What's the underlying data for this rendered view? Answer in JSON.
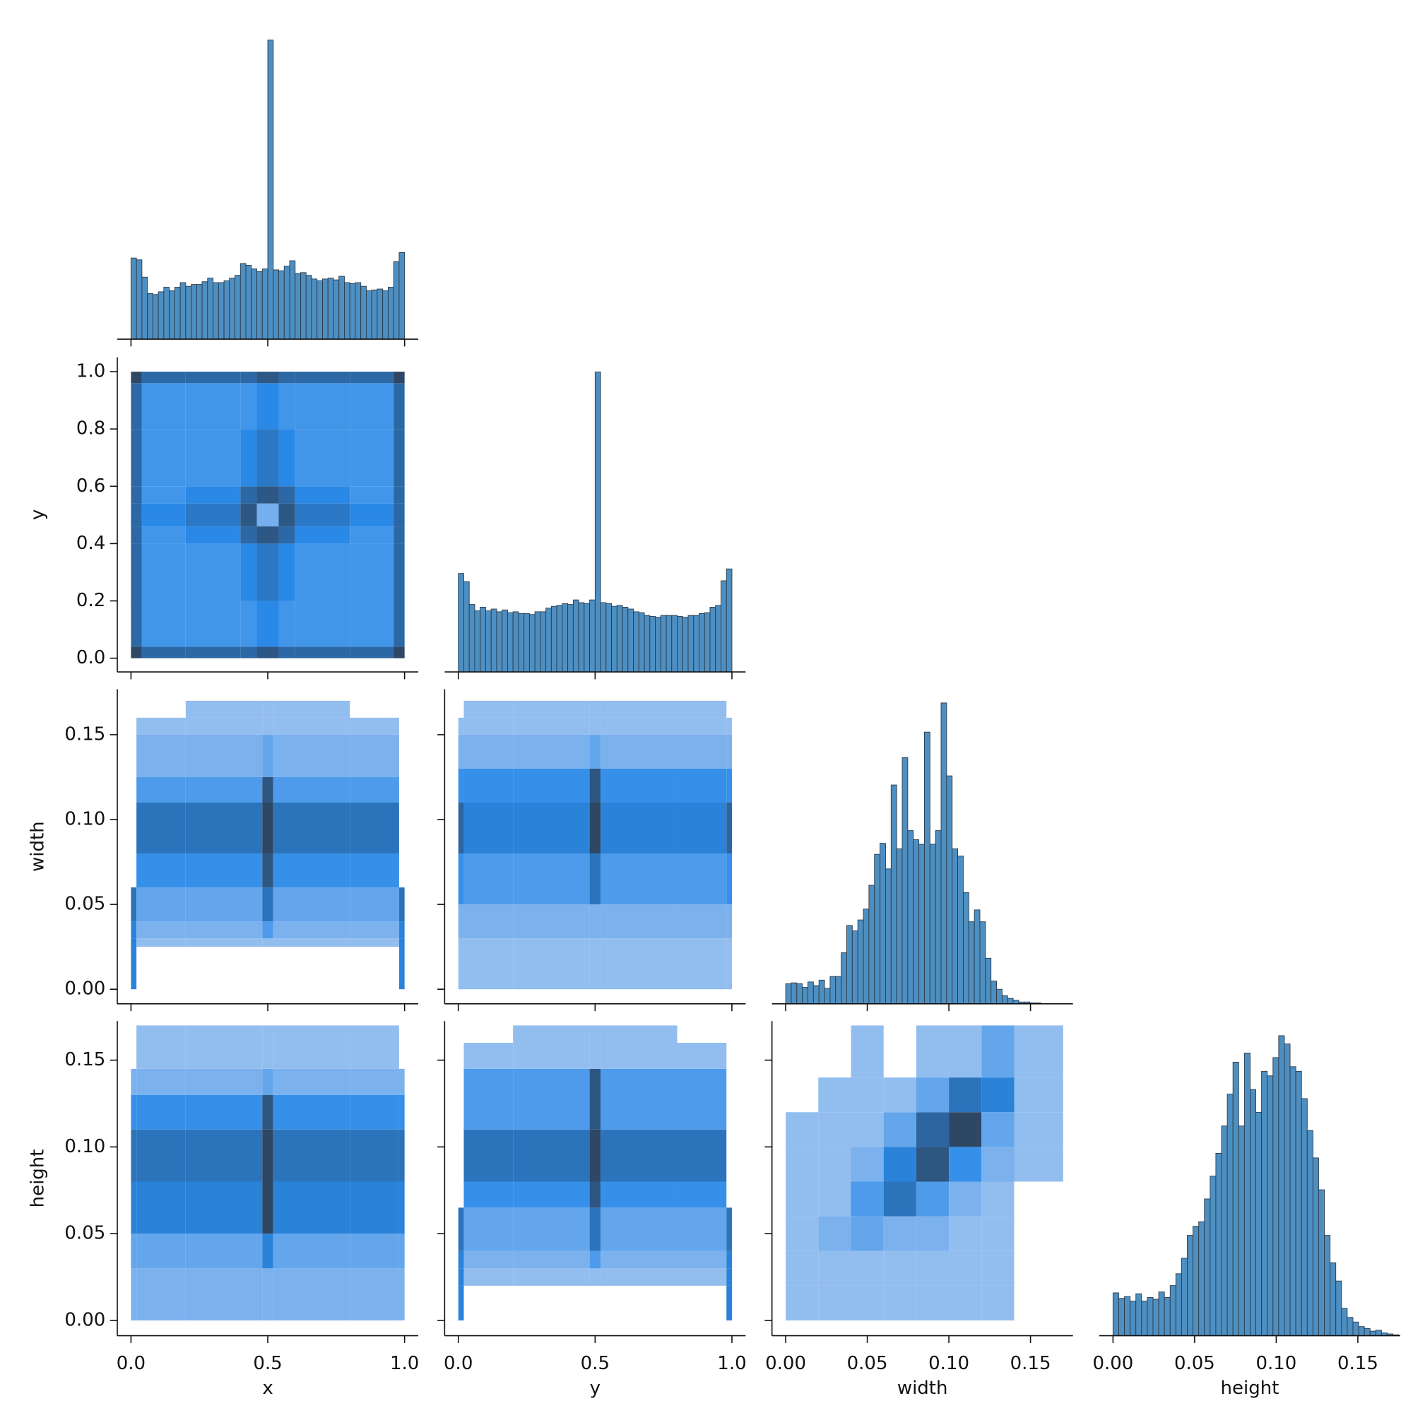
{
  "chart_data": {
    "type": "pairplot",
    "color": "#4e8fc2",
    "edgecolor": "#2b3a48",
    "cmap": [
      "#a9c8f0",
      "#2a8ae8",
      "#2e4764"
    ],
    "variables": [
      {
        "name": "x",
        "xlim": [
          -0.05,
          1.05
        ],
        "xticks": [
          {
            "value": 0,
            "label": "0.0"
          },
          0.5,
          {
            "value": 1,
            "label": "1.0"
          }
        ]
      },
      {
        "name": "y",
        "xlim": [
          -0.05,
          1.05
        ],
        "xticks": [
          {
            "value": 0,
            "label": "0.0"
          },
          0.5,
          {
            "value": 1,
            "label": "1.0"
          }
        ],
        "ylim": [
          -0.048,
          1.05
        ],
        "yticks": [
          {
            "value": 0,
            "label": "0.0"
          },
          0.2,
          0.4,
          0.6,
          0.8,
          {
            "value": 1,
            "label": "1.0"
          }
        ]
      },
      {
        "name": "width",
        "xlim": [
          -0.0084,
          0.176
        ],
        "xticks": [
          {
            "value": 0,
            "label": "0.00"
          },
          0.05,
          {
            "value": 0.1,
            "label": "0.10"
          },
          0.15
        ],
        "ylim": [
          -0.0086,
          0.1768
        ],
        "yticks": [
          {
            "value": 0,
            "label": "0.00"
          },
          0.05,
          {
            "value": 0.1,
            "label": "0.10"
          },
          0.15
        ]
      },
      {
        "name": "height",
        "xlim": [
          -0.0084,
          0.176
        ],
        "xticks": [
          {
            "value": 0,
            "label": "0.00"
          },
          0.05,
          {
            "value": 0.1,
            "label": "0.10"
          },
          0.15
        ],
        "ylim": [
          -0.0088,
          0.1725
        ],
        "yticks": [
          {
            "value": 0,
            "label": "0.00"
          },
          0.05,
          {
            "value": 0.1,
            "label": "0.10"
          },
          0.15
        ]
      }
    ],
    "diagonal": [
      {
        "type": "histogram",
        "ylim": [
          0,
          345
        ],
        "bins": [
          0,
          0.02,
          0.04,
          0.06,
          0.08,
          0.1,
          0.12,
          0.14,
          0.16,
          0.18,
          0.2,
          0.22,
          0.24,
          0.26,
          0.28,
          0.3,
          0.32,
          0.34,
          0.36,
          0.38,
          0.4,
          0.42,
          0.44,
          0.46,
          0.48,
          0.5,
          0.52,
          0.54,
          0.56,
          0.58,
          0.6,
          0.62,
          0.64,
          0.66,
          0.68,
          0.7,
          0.72,
          0.74,
          0.76,
          0.78,
          0.8,
          0.82,
          0.84,
          0.86,
          0.88,
          0.9,
          0.92,
          0.94,
          0.96,
          0.98,
          1.0
        ],
        "values": [
          89,
          87,
          68,
          50,
          49,
          52,
          57,
          53,
          57,
          62,
          58,
          60,
          60,
          63,
          67,
          62,
          62,
          64,
          67,
          70,
          83,
          81,
          77,
          74,
          77,
          328,
          76,
          75,
          80,
          86,
          72,
          73,
          70,
          66,
          64,
          66,
          67,
          65,
          69,
          62,
          61,
          62,
          58,
          53,
          54,
          55,
          53,
          57,
          85,
          95
        ]
      },
      {
        "type": "histogram",
        "ylim": [
          0,
          345
        ],
        "bins": [
          0,
          0.02,
          0.04,
          0.06,
          0.08,
          0.1,
          0.12,
          0.14,
          0.16,
          0.18,
          0.2,
          0.22,
          0.24,
          0.26,
          0.28,
          0.3,
          0.32,
          0.34,
          0.36,
          0.38,
          0.4,
          0.42,
          0.44,
          0.46,
          0.48,
          0.5,
          0.52,
          0.54,
          0.56,
          0.58,
          0.6,
          0.62,
          0.64,
          0.66,
          0.68,
          0.7,
          0.72,
          0.74,
          0.76,
          0.78,
          0.8,
          0.82,
          0.84,
          0.86,
          0.88,
          0.9,
          0.92,
          0.94,
          0.96,
          0.98,
          1.0
        ],
        "values": [
          108,
          99,
          74,
          67,
          71,
          67,
          69,
          66,
          68,
          65,
          66,
          64,
          64,
          63,
          66,
          66,
          70,
          72,
          73,
          75,
          74,
          79,
          76,
          75,
          79,
          329,
          76,
          75,
          72,
          73,
          71,
          69,
          66,
          65,
          62,
          61,
          60,
          62,
          62,
          62,
          61,
          60,
          62,
          62,
          64,
          65,
          71,
          73,
          100,
          113
        ]
      },
      {
        "type": "histogram",
        "ylim": [
          0,
          345
        ],
        "bins": [
          0,
          0.0034,
          0.0068,
          0.0102,
          0.0136,
          0.017,
          0.0204,
          0.0238,
          0.0272,
          0.0306,
          0.034,
          0.0374,
          0.0408,
          0.0442,
          0.0476,
          0.051,
          0.0544,
          0.0578,
          0.0612,
          0.0646,
          0.068,
          0.0714,
          0.0748,
          0.0782,
          0.0816,
          0.085,
          0.0884,
          0.0918,
          0.0952,
          0.0986,
          0.102,
          0.1054,
          0.1088,
          0.1122,
          0.1156,
          0.119,
          0.1224,
          0.1258,
          0.1292,
          0.1326,
          0.136,
          0.1394,
          0.1428,
          0.1462,
          0.1496,
          0.153,
          0.1564,
          0.1598,
          0.1632,
          0.1666,
          0.17
        ],
        "values": [
          22,
          23,
          22,
          18,
          24,
          20,
          26,
          17,
          30,
          30,
          56,
          86,
          80,
          92,
          104,
          130,
          164,
          176,
          148,
          240,
          170,
          270,
          190,
          180,
          175,
          298,
          175,
          190,
          330,
          250,
          170,
          162,
          122,
          90,
          103,
          90,
          50,
          25,
          16,
          9,
          6,
          4,
          2,
          2,
          1,
          1,
          0,
          0,
          0,
          0
        ]
      },
      {
        "type": "histogram",
        "ylim": [
          0,
          345
        ],
        "bins": [
          0,
          0.0035,
          0.007,
          0.0105,
          0.014,
          0.0175,
          0.021,
          0.0245,
          0.028,
          0.0315,
          0.035,
          0.0385,
          0.042,
          0.0455,
          0.049,
          0.0525,
          0.056,
          0.0595,
          0.063,
          0.0665,
          0.07,
          0.0735,
          0.077,
          0.0805,
          0.084,
          0.0875,
          0.091,
          0.0945,
          0.098,
          0.1015,
          0.105,
          0.1085,
          0.112,
          0.1155,
          0.119,
          0.1225,
          0.126,
          0.1295,
          0.133,
          0.1365,
          0.14,
          0.1435,
          0.147,
          0.1505,
          0.154,
          0.1575,
          0.161,
          0.1645,
          0.168,
          0.1715,
          0.175
        ],
        "values": [
          47,
          41,
          43,
          38,
          46,
          38,
          42,
          40,
          48,
          42,
          55,
          68,
          85,
          110,
          120,
          125,
          150,
          175,
          200,
          230,
          265,
          300,
          230,
          310,
          270,
          245,
          290,
          285,
          305,
          329,
          320,
          295,
          290,
          260,
          225,
          195,
          160,
          110,
          80,
          60,
          30,
          20,
          15,
          10,
          8,
          5,
          6,
          3,
          2,
          1
        ]
      }
    ],
    "off_diagonal": [
      {
        "type": "hist2d",
        "xbins": [
          0,
          0.04,
          0.2,
          0.4,
          0.46,
          0.54,
          0.6,
          0.8,
          0.96,
          1.0
        ],
        "ybins": [
          0,
          0.04,
          0.2,
          0.4,
          0.46,
          0.54,
          0.6,
          0.8,
          0.96,
          1.0
        ],
        "counts": [
          [
            9,
            7,
            7,
            7,
            8,
            7,
            7,
            7,
            9
          ],
          [
            7,
            4,
            4,
            4,
            5,
            4,
            4,
            4,
            7
          ],
          [
            7,
            4,
            4,
            5,
            6,
            5,
            4,
            4,
            7
          ],
          [
            7,
            4,
            5,
            7,
            8,
            7,
            5,
            4,
            7
          ],
          [
            7,
            5,
            6,
            8,
            2,
            8,
            6,
            5,
            7
          ],
          [
            7,
            4,
            5,
            7,
            8,
            7,
            5,
            4,
            7
          ],
          [
            7,
            4,
            4,
            5,
            6,
            5,
            4,
            4,
            7
          ],
          [
            7,
            4,
            4,
            4,
            5,
            4,
            4,
            4,
            7
          ],
          [
            9,
            7,
            7,
            7,
            8,
            7,
            7,
            7,
            9
          ]
        ]
      },
      {
        "type": "hist2d",
        "xbins": [
          0,
          0.02,
          0.2,
          0.48,
          0.52,
          0.8,
          0.98,
          1.0
        ],
        "ybins": [
          0,
          0.025,
          0.03,
          0.04,
          0.06,
          0.08,
          0.11,
          0.125,
          0.15,
          0.16,
          0.17
        ],
        "counts": [
          [
            6,
            0,
            0,
            0,
            0,
            0,
            6
          ],
          [
            6,
            1,
            1,
            1,
            1,
            1,
            6
          ],
          [
            6,
            2,
            2,
            4,
            2,
            2,
            6
          ],
          [
            7,
            3,
            3,
            7,
            3,
            3,
            7
          ],
          [
            0,
            5,
            5,
            9,
            5,
            5,
            0
          ],
          [
            0,
            7,
            7,
            10,
            7,
            7,
            0
          ],
          [
            0,
            4,
            4,
            9,
            4,
            4,
            0
          ],
          [
            0,
            2,
            2,
            3,
            2,
            2,
            0
          ],
          [
            0,
            1,
            1,
            1,
            1,
            1,
            0
          ],
          [
            0,
            0,
            1,
            1,
            1,
            0,
            0
          ]
        ]
      },
      {
        "type": "hist2d",
        "xbins": [
          0,
          0.02,
          0.2,
          0.48,
          0.52,
          0.8,
          0.98,
          1.0
        ],
        "ybins": [
          0,
          0.03,
          0.05,
          0.08,
          0.11,
          0.13,
          0.15,
          0.16,
          0.17
        ],
        "counts": [
          [
            1,
            1,
            1,
            1,
            1,
            1,
            1
          ],
          [
            2,
            2,
            2,
            2,
            2,
            2,
            2
          ],
          [
            5,
            4,
            4,
            7,
            4,
            4,
            5
          ],
          [
            8,
            6,
            6,
            10,
            6,
            6,
            8
          ],
          [
            5,
            5,
            5,
            9,
            5,
            5,
            5
          ],
          [
            2,
            2,
            2,
            3,
            2,
            2,
            2
          ],
          [
            1,
            1,
            1,
            1,
            1,
            1,
            1
          ],
          [
            0,
            1,
            1,
            1,
            1,
            1,
            0
          ]
        ]
      },
      {
        "type": "hist2d",
        "xbins": [
          0,
          0.02,
          0.2,
          0.48,
          0.52,
          0.8,
          0.98,
          1.0
        ],
        "ybins": [
          0,
          0.03,
          0.05,
          0.08,
          0.11,
          0.13,
          0.145,
          0.16,
          0.17
        ],
        "counts": [
          [
            2,
            2,
            2,
            2,
            2,
            2,
            2
          ],
          [
            3,
            3,
            3,
            6,
            3,
            3,
            3
          ],
          [
            6,
            6,
            6,
            10,
            6,
            6,
            6
          ],
          [
            7,
            7,
            7,
            10,
            7,
            7,
            7
          ],
          [
            5,
            5,
            5,
            9,
            5,
            5,
            5
          ],
          [
            2,
            2,
            2,
            3,
            2,
            2,
            2
          ],
          [
            0,
            1,
            1,
            1,
            1,
            1,
            0
          ],
          [
            0,
            1,
            1,
            1,
            1,
            1,
            0
          ]
        ]
      },
      {
        "type": "hist2d",
        "xbins": [
          0,
          0.02,
          0.2,
          0.48,
          0.52,
          0.8,
          0.98,
          1.0
        ],
        "ybins": [
          0,
          0.02,
          0.03,
          0.04,
          0.065,
          0.08,
          0.11,
          0.145,
          0.16,
          0.17
        ],
        "counts": [
          [
            6,
            0,
            0,
            0,
            0,
            0,
            6
          ],
          [
            6,
            1,
            1,
            1,
            1,
            1,
            6
          ],
          [
            6,
            2,
            2,
            4,
            2,
            2,
            6
          ],
          [
            7,
            3,
            3,
            7,
            3,
            3,
            7
          ],
          [
            0,
            5,
            5,
            9,
            5,
            5,
            0
          ],
          [
            0,
            7,
            7,
            10,
            7,
            7,
            0
          ],
          [
            0,
            4,
            4,
            9,
            4,
            4,
            0
          ],
          [
            0,
            1,
            1,
            1,
            1,
            1,
            0
          ],
          [
            0,
            0,
            1,
            1,
            1,
            0,
            0
          ]
        ]
      },
      {
        "type": "hist2d",
        "xbins": [
          0,
          0.02,
          0.04,
          0.06,
          0.08,
          0.1,
          0.12,
          0.14,
          0.17
        ],
        "ybins": [
          0,
          0.02,
          0.04,
          0.06,
          0.08,
          0.1,
          0.12,
          0.14,
          0.17
        ],
        "counts": [
          [
            1,
            1,
            1,
            1,
            1,
            1,
            1,
            0
          ],
          [
            1,
            1,
            1,
            1,
            1,
            1,
            1,
            0
          ],
          [
            1,
            2,
            3,
            2,
            2,
            1,
            1,
            0
          ],
          [
            1,
            1,
            4,
            7,
            4,
            2,
            1,
            0
          ],
          [
            1,
            1,
            2,
            6,
            9,
            5,
            2,
            1
          ],
          [
            1,
            1,
            1,
            3,
            8,
            10,
            3,
            1
          ],
          [
            0,
            1,
            1,
            1,
            3,
            7,
            6,
            1
          ],
          [
            0,
            0,
            1,
            0,
            1,
            1,
            3,
            1
          ]
        ]
      }
    ]
  }
}
